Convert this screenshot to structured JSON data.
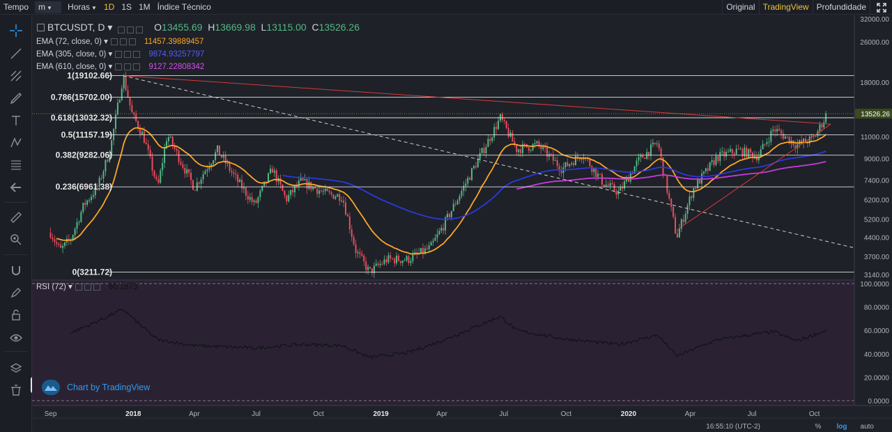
{
  "toolbar": {
    "time_label": "Tempo",
    "interval_select": "m",
    "hours_label": "Horas",
    "intervals": [
      "1D",
      "1S",
      "1M"
    ],
    "active_interval": "1D",
    "indicators_label": "Índice Técnico",
    "views": [
      "Original",
      "TradingView",
      "Profundidade"
    ],
    "active_view": "TradingView"
  },
  "legend": {
    "symbol": "BTCUSDT, D",
    "open_label": "O",
    "open": "13455.69",
    "high_label": "H",
    "high": "13669.98",
    "low_label": "L",
    "low": "13115.00",
    "close_label": "C",
    "close": "13526.26",
    "ema72_label": "EMA (72, close, 0)",
    "ema72_value": "11457.39889457",
    "ema305_label": "EMA (305, close, 0)",
    "ema305_value": "9874.93257797",
    "ema610_label": "EMA (610, close, 0)",
    "ema610_value": "9127.22808342",
    "rsi_label": "RSI (72)",
    "rsi_value": "60.1873"
  },
  "colors": {
    "background": "#1e2128",
    "rsi_background": "#2a2232",
    "candle_up": "#53b987",
    "candle_down": "#eb4d5c",
    "ema72": "#ffa726",
    "ema305": "#2b39e0",
    "ema610": "#c73be0",
    "fib_line": "#e0e0e0",
    "trendline": "#d83a3a",
    "price_tag": "#3b4a1f"
  },
  "watermark": {
    "text": "Chart by TradingView"
  },
  "status": {
    "time": "16:55:10 (UTC-2)",
    "percent": "%",
    "log": "log",
    "auto": "auto"
  },
  "chart_data": [
    {
      "type": "candlestick",
      "title": "BTCUSDT, D",
      "x_tick_labels": [
        "Sep",
        "2018",
        "Apr",
        "Jul",
        "Oct",
        "2019",
        "Apr",
        "Jul",
        "Oct",
        "2020",
        "Apr",
        "Jul",
        "Oct"
      ],
      "y_scale": "log",
      "y_tick_labels": [
        "3140.00",
        "3700.00",
        "4400.00",
        "5200.00",
        "6200.00",
        "7400.00",
        "9000.00",
        "11000.00",
        "13526.26",
        "18000.00",
        "26000.00",
        "32000.00"
      ],
      "ylim": [
        3140,
        32000
      ],
      "last_price": 13526.26,
      "fibonacci": [
        {
          "label": "1(19102.66)",
          "value": 19102.66
        },
        {
          "label": "0.786(15702.00)",
          "value": 15702.0
        },
        {
          "label": "0.618(13032.32)",
          "value": 13032.32
        },
        {
          "label": "0.5(11157.19)",
          "value": 11157.19
        },
        {
          "label": "0.382(9282.06)",
          "value": 9282.06
        },
        {
          "label": "0.236(6961.38)",
          "value": 6961.38
        },
        {
          "label": "0(3211.72)",
          "value": 3211.72
        }
      ],
      "price_path": [
        [
          "2017-09-01",
          4600
        ],
        [
          "2017-09-15",
          3900
        ],
        [
          "2017-10-01",
          4350
        ],
        [
          "2017-10-20",
          5900
        ],
        [
          "2017-11-10",
          7000
        ],
        [
          "2017-11-28",
          9800
        ],
        [
          "2017-12-17",
          19100
        ],
        [
          "2017-12-30",
          13500
        ],
        [
          "2018-01-16",
          11000
        ],
        [
          "2018-02-06",
          6900
        ],
        [
          "2018-02-20",
          11200
        ],
        [
          "2018-03-10",
          9000
        ],
        [
          "2018-04-01",
          6900
        ],
        [
          "2018-05-05",
          9700
        ],
        [
          "2018-06-01",
          7500
        ],
        [
          "2018-06-29",
          5900
        ],
        [
          "2018-07-25",
          8200
        ],
        [
          "2018-08-14",
          6200
        ],
        [
          "2018-09-05",
          7300
        ],
        [
          "2018-10-15",
          6500
        ],
        [
          "2018-11-05",
          6400
        ],
        [
          "2018-11-25",
          3900
        ],
        [
          "2018-12-15",
          3211.72
        ],
        [
          "2019-01-10",
          3600
        ],
        [
          "2019-02-10",
          3600
        ],
        [
          "2019-03-15",
          4000
        ],
        [
          "2019-04-05",
          5000
        ],
        [
          "2019-05-15",
          8000
        ],
        [
          "2019-06-26",
          13000
        ],
        [
          "2019-07-20",
          9800
        ],
        [
          "2019-08-20",
          10200
        ],
        [
          "2019-09-25",
          8200
        ],
        [
          "2019-10-25",
          9400
        ],
        [
          "2019-11-25",
          7200
        ],
        [
          "2019-12-18",
          6600
        ],
        [
          "2020-01-15",
          8800
        ],
        [
          "2020-02-13",
          10400
        ],
        [
          "2020-03-12",
          4400
        ],
        [
          "2020-04-05",
          6800
        ],
        [
          "2020-05-10",
          9100
        ],
        [
          "2020-06-10",
          9700
        ],
        [
          "2020-07-10",
          9200
        ],
        [
          "2020-08-02",
          11800
        ],
        [
          "2020-09-05",
          10200
        ],
        [
          "2020-09-30",
          10800
        ],
        [
          "2020-10-20",
          13526.26
        ]
      ],
      "series": [
        {
          "name": "EMA (72, close, 0)",
          "last_value": 11457.39889457
        },
        {
          "name": "EMA (305, close, 0)",
          "last_value": 9874.93257797
        },
        {
          "name": "EMA (610, close, 0)",
          "last_value": 9127.22808342
        }
      ]
    },
    {
      "type": "line",
      "title": "RSI (72)",
      "y_tick_labels": [
        "100.0000",
        "80.0000",
        "60.0000",
        "40.0000",
        "20.0000",
        "0.0000"
      ],
      "ylim": [
        0,
        100
      ],
      "last_value": 60.1873,
      "points": [
        [
          "2017-10-01",
          58
        ],
        [
          "2017-11-10",
          68
        ],
        [
          "2017-12-17",
          78
        ],
        [
          "2018-01-16",
          62
        ],
        [
          "2018-02-06",
          52
        ],
        [
          "2018-04-01",
          47
        ],
        [
          "2018-06-29",
          45
        ],
        [
          "2018-09-05",
          48
        ],
        [
          "2018-11-05",
          47
        ],
        [
          "2018-12-15",
          37
        ],
        [
          "2019-02-10",
          41
        ],
        [
          "2019-04-05",
          52
        ],
        [
          "2019-06-26",
          72
        ],
        [
          "2019-07-20",
          60
        ],
        [
          "2019-09-25",
          53
        ],
        [
          "2019-12-18",
          48
        ],
        [
          "2020-02-13",
          56
        ],
        [
          "2020-03-12",
          38
        ],
        [
          "2020-05-10",
          52
        ],
        [
          "2020-08-02",
          59
        ],
        [
          "2020-09-05",
          51
        ],
        [
          "2020-10-20",
          60.19
        ]
      ]
    }
  ]
}
